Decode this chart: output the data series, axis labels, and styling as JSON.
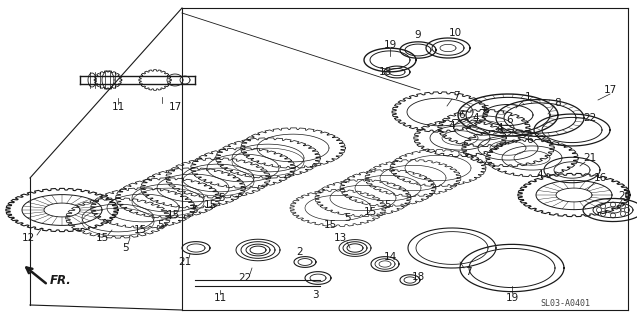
{
  "bg_color": "#ffffff",
  "line_color": "#1a1a1a",
  "fig_width": 6.37,
  "fig_height": 3.2,
  "dpi": 100,
  "diagram_code": "SL03-A0401"
}
